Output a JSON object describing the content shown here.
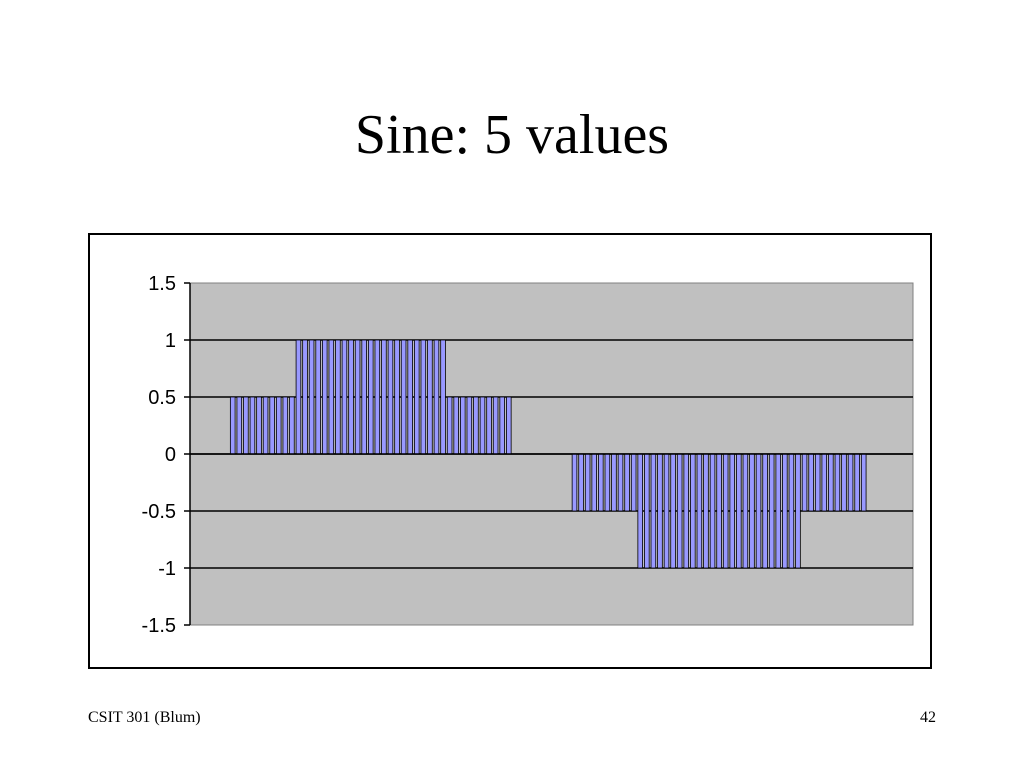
{
  "slide": {
    "title": "Sine: 5 values",
    "footer_left": "CSIT 301 (Blum)",
    "page_number": "42"
  },
  "chart_data": {
    "type": "bar",
    "title": "",
    "xlabel": "",
    "ylabel": "",
    "ylim": [
      -1.5,
      1.5
    ],
    "yticks": [
      1.5,
      1,
      0.5,
      0,
      -0.5,
      -1,
      -1.5
    ],
    "ytick_labels": [
      "1.5",
      "1",
      "0.5",
      "0",
      "-0.5",
      "-1",
      "-1.5"
    ],
    "grid": true,
    "legend": "none",
    "plot_background": "#c0c0c0",
    "bar_color": "#9999ff",
    "values": [
      0,
      0,
      0,
      0,
      0,
      0,
      0.5,
      0.5,
      0.5,
      0.5,
      0.5,
      0.5,
      0.5,
      0.5,
      0.5,
      0.5,
      1,
      1,
      1,
      1,
      1,
      1,
      1,
      1,
      1,
      1,
      1,
      1,
      1,
      1,
      1,
      1,
      1,
      1,
      1,
      1,
      1,
      1,
      1,
      0.5,
      0.5,
      0.5,
      0.5,
      0.5,
      0.5,
      0.5,
      0.5,
      0.5,
      0.5,
      0,
      0,
      0,
      0,
      0,
      0,
      0,
      0,
      0,
      -0.5,
      -0.5,
      -0.5,
      -0.5,
      -0.5,
      -0.5,
      -0.5,
      -0.5,
      -0.5,
      -0.5,
      -1,
      -1,
      -1,
      -1,
      -1,
      -1,
      -1,
      -1,
      -1,
      -1,
      -1,
      -1,
      -1,
      -1,
      -1,
      -1,
      -1,
      -1,
      -1,
      -1,
      -1,
      -1,
      -1,
      -1,
      -1,
      -0.5,
      -0.5,
      -0.5,
      -0.5,
      -0.5,
      -0.5,
      -0.5,
      -0.5,
      -0.5,
      -0.5,
      0,
      0,
      0,
      0,
      0,
      0,
      0
    ]
  }
}
